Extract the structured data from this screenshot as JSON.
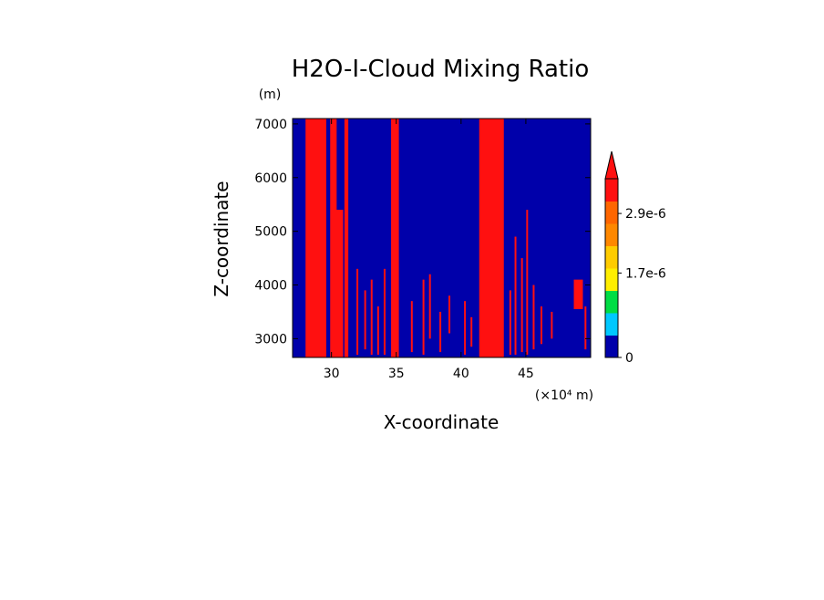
{
  "chart_data": {
    "type": "heatmap",
    "title": "H2O-I-Cloud Mixing Ratio",
    "xlabel": "X-coordinate",
    "ylabel": "Z-coordinate",
    "x_unit": "(×10⁴ m)",
    "y_unit": "(m)",
    "xlim": [
      27,
      50
    ],
    "ylim": [
      2650,
      7100
    ],
    "x_ticks": [
      30,
      35,
      40,
      45
    ],
    "x_tick_labels": [
      "30",
      "35",
      "40",
      "45"
    ],
    "y_ticks": [
      3000,
      4000,
      5000,
      6000,
      7000
    ],
    "y_tick_labels": [
      "3000",
      "4000",
      "5000",
      "6000",
      "7000"
    ],
    "background_color": "#0000aa",
    "colorbar": {
      "colors": [
        "#0000aa",
        "#00c8ff",
        "#00dd44",
        "#ffee00",
        "#ffcc00",
        "#ff8800",
        "#ff6600",
        "#ff1010"
      ],
      "labels": [
        {
          "value": 0,
          "text": "0"
        },
        {
          "value": 1.7e-06,
          "text": "1.7e-6"
        },
        {
          "value": 2.9e-06,
          "text": "2.9e-6"
        }
      ],
      "max_value": 3.6e-06,
      "extend": "max"
    },
    "high_regions": [
      {
        "x0": 28.0,
        "x1": 29.6,
        "z0": 2650,
        "z1": 7100
      },
      {
        "x0": 29.9,
        "x1": 30.4,
        "z0": 2650,
        "z1": 7100
      },
      {
        "x0": 30.3,
        "x1": 30.9,
        "z0": 2650,
        "z1": 5400
      },
      {
        "x0": 31.0,
        "x1": 31.3,
        "z0": 2650,
        "z1": 7100
      },
      {
        "x0": 34.6,
        "x1": 35.2,
        "z0": 2650,
        "z1": 7100
      },
      {
        "x0": 41.4,
        "x1": 43.3,
        "z0": 2650,
        "z1": 7100
      },
      {
        "x0": 48.7,
        "x1": 49.4,
        "z0": 3550,
        "z1": 4100
      }
    ],
    "streaks": [
      {
        "x": 32.0,
        "z0": 2700,
        "z1": 4300
      },
      {
        "x": 32.6,
        "z0": 2800,
        "z1": 3900
      },
      {
        "x": 33.1,
        "z0": 2700,
        "z1": 4100
      },
      {
        "x": 33.6,
        "z0": 2700,
        "z1": 3600
      },
      {
        "x": 34.1,
        "z0": 2700,
        "z1": 4300
      },
      {
        "x": 36.2,
        "z0": 2750,
        "z1": 3700
      },
      {
        "x": 37.1,
        "z0": 2700,
        "z1": 4100
      },
      {
        "x": 37.6,
        "z0": 3000,
        "z1": 4200
      },
      {
        "x": 38.4,
        "z0": 2750,
        "z1": 3500
      },
      {
        "x": 39.1,
        "z0": 3100,
        "z1": 3800
      },
      {
        "x": 40.3,
        "z0": 2700,
        "z1": 3700
      },
      {
        "x": 40.8,
        "z0": 2850,
        "z1": 3400
      },
      {
        "x": 43.8,
        "z0": 2700,
        "z1": 3900
      },
      {
        "x": 44.2,
        "z0": 2700,
        "z1": 4900
      },
      {
        "x": 44.7,
        "z0": 2750,
        "z1": 4500
      },
      {
        "x": 45.1,
        "z0": 2700,
        "z1": 5400
      },
      {
        "x": 45.6,
        "z0": 2800,
        "z1": 4000
      },
      {
        "x": 46.2,
        "z0": 2900,
        "z1": 3600
      },
      {
        "x": 47.0,
        "z0": 3000,
        "z1": 3500
      },
      {
        "x": 49.6,
        "z0": 2800,
        "z1": 3600
      }
    ]
  }
}
